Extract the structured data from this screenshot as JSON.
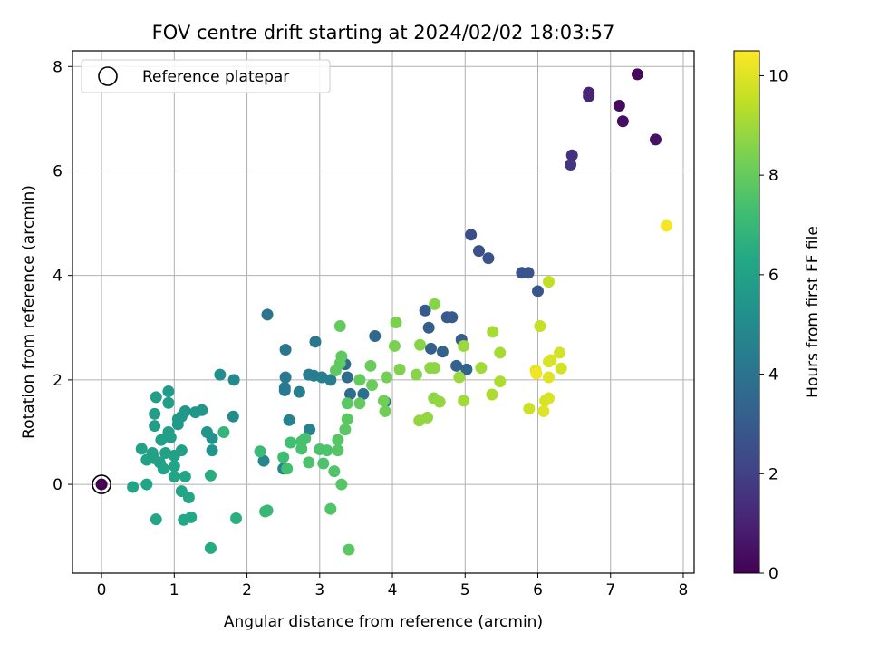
{
  "chart_data": {
    "type": "scatter",
    "title": "FOV centre drift starting at 2024/02/02 18:03:57",
    "xlabel": "Angular distance from reference (arcmin)",
    "ylabel": "Rotation from reference (arcmin)",
    "xlim": [
      -0.4,
      8.15
    ],
    "ylim": [
      -1.7,
      8.3
    ],
    "xticks": [
      0,
      1,
      2,
      3,
      4,
      5,
      6,
      7,
      8
    ],
    "yticks": [
      0,
      2,
      4,
      6,
      8
    ],
    "grid": true,
    "legend": {
      "position": "top-left",
      "entries": [
        "Reference platepar"
      ]
    },
    "reference_point": {
      "x": 0,
      "y": 0
    },
    "colorbar": {
      "label": "Hours from first FF file",
      "colormap": "viridis",
      "range": [
        0,
        10.5
      ],
      "ticks": [
        0,
        2,
        4,
        6,
        8,
        10
      ]
    },
    "points": [
      {
        "x": 0.0,
        "y": 0.0,
        "h": 0.0
      },
      {
        "x": 7.37,
        "y": 7.85,
        "h": 0.2
      },
      {
        "x": 7.12,
        "y": 7.25,
        "h": 0.3
      },
      {
        "x": 7.17,
        "y": 6.95,
        "h": 0.4
      },
      {
        "x": 7.62,
        "y": 6.6,
        "h": 0.5
      },
      {
        "x": 6.7,
        "y": 7.5,
        "h": 1.0
      },
      {
        "x": 6.7,
        "y": 7.43,
        "h": 1.1
      },
      {
        "x": 6.47,
        "y": 6.3,
        "h": 1.5
      },
      {
        "x": 6.45,
        "y": 6.12,
        "h": 1.6
      },
      {
        "x": 5.08,
        "y": 4.78,
        "h": 2.5
      },
      {
        "x": 5.19,
        "y": 4.47,
        "h": 2.6
      },
      {
        "x": 5.32,
        "y": 4.33,
        "h": 2.6
      },
      {
        "x": 5.78,
        "y": 4.05,
        "h": 2.7
      },
      {
        "x": 5.87,
        "y": 4.05,
        "h": 2.7
      },
      {
        "x": 6.0,
        "y": 3.7,
        "h": 2.8
      },
      {
        "x": 4.45,
        "y": 3.33,
        "h": 2.9
      },
      {
        "x": 4.75,
        "y": 3.2,
        "h": 3.0
      },
      {
        "x": 4.82,
        "y": 3.2,
        "h": 3.0
      },
      {
        "x": 4.5,
        "y": 3.0,
        "h": 3.1
      },
      {
        "x": 4.95,
        "y": 2.77,
        "h": 3.1
      },
      {
        "x": 4.53,
        "y": 2.6,
        "h": 3.2
      },
      {
        "x": 4.69,
        "y": 2.54,
        "h": 3.3
      },
      {
        "x": 4.88,
        "y": 2.27,
        "h": 3.3
      },
      {
        "x": 5.02,
        "y": 2.2,
        "h": 3.4
      },
      {
        "x": 3.76,
        "y": 2.84,
        "h": 3.5
      },
      {
        "x": 3.35,
        "y": 2.3,
        "h": 3.6
      },
      {
        "x": 3.38,
        "y": 2.05,
        "h": 3.7
      },
      {
        "x": 3.42,
        "y": 1.73,
        "h": 3.7
      },
      {
        "x": 3.6,
        "y": 1.73,
        "h": 3.8
      },
      {
        "x": 3.9,
        "y": 1.58,
        "h": 3.9
      },
      {
        "x": 2.28,
        "y": 3.25,
        "h": 4.0
      },
      {
        "x": 2.53,
        "y": 2.58,
        "h": 4.1
      },
      {
        "x": 2.94,
        "y": 2.73,
        "h": 4.2
      },
      {
        "x": 2.53,
        "y": 2.05,
        "h": 4.3
      },
      {
        "x": 2.52,
        "y": 1.85,
        "h": 4.3
      },
      {
        "x": 2.52,
        "y": 1.8,
        "h": 4.3
      },
      {
        "x": 2.85,
        "y": 2.1,
        "h": 4.4
      },
      {
        "x": 2.92,
        "y": 2.08,
        "h": 4.4
      },
      {
        "x": 3.03,
        "y": 2.05,
        "h": 4.5
      },
      {
        "x": 3.15,
        "y": 2.0,
        "h": 4.5
      },
      {
        "x": 2.72,
        "y": 1.77,
        "h": 4.5
      },
      {
        "x": 2.58,
        "y": 1.23,
        "h": 4.6
      },
      {
        "x": 2.86,
        "y": 1.05,
        "h": 4.6
      },
      {
        "x": 2.5,
        "y": 0.3,
        "h": 4.7
      },
      {
        "x": 2.23,
        "y": 0.45,
        "h": 4.8
      },
      {
        "x": 1.82,
        "y": 2.0,
        "h": 4.9
      },
      {
        "x": 1.81,
        "y": 1.3,
        "h": 5.0
      },
      {
        "x": 1.63,
        "y": 2.1,
        "h": 5.2
      },
      {
        "x": 1.52,
        "y": 0.88,
        "h": 5.3
      },
      {
        "x": 1.52,
        "y": 0.65,
        "h": 5.4
      },
      {
        "x": 1.45,
        "y": 1.0,
        "h": 5.4
      },
      {
        "x": 1.38,
        "y": 1.42,
        "h": 5.5
      },
      {
        "x": 1.29,
        "y": 1.38,
        "h": 5.5
      },
      {
        "x": 1.15,
        "y": 1.4,
        "h": 5.5
      },
      {
        "x": 1.1,
        "y": 1.3,
        "h": 5.6
      },
      {
        "x": 1.05,
        "y": 1.25,
        "h": 5.6
      },
      {
        "x": 1.05,
        "y": 1.15,
        "h": 5.6
      },
      {
        "x": 0.92,
        "y": 1.78,
        "h": 5.7
      },
      {
        "x": 0.75,
        "y": 1.67,
        "h": 5.8
      },
      {
        "x": 0.92,
        "y": 1.56,
        "h": 5.8
      },
      {
        "x": 0.73,
        "y": 1.35,
        "h": 5.8
      },
      {
        "x": 0.73,
        "y": 1.12,
        "h": 5.8
      },
      {
        "x": 0.92,
        "y": 1.0,
        "h": 5.9
      },
      {
        "x": 0.95,
        "y": 0.9,
        "h": 5.9
      },
      {
        "x": 0.82,
        "y": 0.85,
        "h": 5.9
      },
      {
        "x": 1.1,
        "y": 0.65,
        "h": 5.9
      },
      {
        "x": 1.0,
        "y": 0.55,
        "h": 5.9
      },
      {
        "x": 0.88,
        "y": 0.6,
        "h": 6.0
      },
      {
        "x": 0.7,
        "y": 0.6,
        "h": 6.0
      },
      {
        "x": 0.55,
        "y": 0.68,
        "h": 6.0
      },
      {
        "x": 0.62,
        "y": 0.47,
        "h": 6.0
      },
      {
        "x": 0.72,
        "y": 0.5,
        "h": 6.0
      },
      {
        "x": 0.8,
        "y": 0.42,
        "h": 6.0
      },
      {
        "x": 0.85,
        "y": 0.3,
        "h": 6.1
      },
      {
        "x": 1.0,
        "y": 0.35,
        "h": 6.1
      },
      {
        "x": 1.0,
        "y": 0.15,
        "h": 6.1
      },
      {
        "x": 1.15,
        "y": 0.15,
        "h": 6.1
      },
      {
        "x": 0.62,
        "y": 0.0,
        "h": 6.1
      },
      {
        "x": 0.43,
        "y": -0.05,
        "h": 6.1
      },
      {
        "x": 1.1,
        "y": -0.13,
        "h": 6.1
      },
      {
        "x": 1.2,
        "y": -0.25,
        "h": 6.2
      },
      {
        "x": 0.75,
        "y": -0.67,
        "h": 6.2
      },
      {
        "x": 1.13,
        "y": -0.68,
        "h": 6.3
      },
      {
        "x": 1.23,
        "y": -0.63,
        "h": 6.3
      },
      {
        "x": 1.5,
        "y": -1.22,
        "h": 6.4
      },
      {
        "x": 1.5,
        "y": 0.17,
        "h": 6.5
      },
      {
        "x": 1.85,
        "y": -0.65,
        "h": 6.6
      },
      {
        "x": 1.68,
        "y": 1.0,
        "h": 6.9
      },
      {
        "x": 2.25,
        "y": -0.52,
        "h": 7.0
      },
      {
        "x": 2.28,
        "y": -0.5,
        "h": 7.0
      },
      {
        "x": 2.18,
        "y": 0.63,
        "h": 7.1
      },
      {
        "x": 2.5,
        "y": 0.52,
        "h": 7.2
      },
      {
        "x": 2.55,
        "y": 0.3,
        "h": 7.3
      },
      {
        "x": 2.6,
        "y": 0.8,
        "h": 7.3
      },
      {
        "x": 2.75,
        "y": 0.82,
        "h": 7.4
      },
      {
        "x": 2.8,
        "y": 0.88,
        "h": 7.4
      },
      {
        "x": 2.75,
        "y": 0.68,
        "h": 7.4
      },
      {
        "x": 2.85,
        "y": 0.42,
        "h": 7.5
      },
      {
        "x": 3.0,
        "y": 0.67,
        "h": 7.5
      },
      {
        "x": 3.05,
        "y": 0.4,
        "h": 7.5
      },
      {
        "x": 3.1,
        "y": 0.65,
        "h": 7.5
      },
      {
        "x": 3.2,
        "y": 0.25,
        "h": 7.6
      },
      {
        "x": 3.15,
        "y": -0.47,
        "h": 7.6
      },
      {
        "x": 3.3,
        "y": 0.0,
        "h": 7.7
      },
      {
        "x": 3.25,
        "y": 0.65,
        "h": 7.7
      },
      {
        "x": 3.25,
        "y": 0.85,
        "h": 7.7
      },
      {
        "x": 3.35,
        "y": 1.05,
        "h": 7.8
      },
      {
        "x": 3.38,
        "y": 1.25,
        "h": 7.8
      },
      {
        "x": 3.38,
        "y": 1.55,
        "h": 7.8
      },
      {
        "x": 3.4,
        "y": -1.25,
        "h": 7.8
      },
      {
        "x": 3.22,
        "y": 2.18,
        "h": 7.9
      },
      {
        "x": 3.28,
        "y": 2.32,
        "h": 7.9
      },
      {
        "x": 3.3,
        "y": 2.45,
        "h": 7.9
      },
      {
        "x": 3.28,
        "y": 3.03,
        "h": 8.0
      },
      {
        "x": 3.55,
        "y": 2.0,
        "h": 8.0
      },
      {
        "x": 3.55,
        "y": 1.55,
        "h": 8.0
      },
      {
        "x": 3.72,
        "y": 1.9,
        "h": 8.1
      },
      {
        "x": 3.7,
        "y": 2.27,
        "h": 8.1
      },
      {
        "x": 3.88,
        "y": 1.6,
        "h": 8.2
      },
      {
        "x": 3.9,
        "y": 1.4,
        "h": 8.2
      },
      {
        "x": 3.92,
        "y": 2.05,
        "h": 8.3
      },
      {
        "x": 4.05,
        "y": 3.1,
        "h": 8.4
      },
      {
        "x": 4.03,
        "y": 2.65,
        "h": 8.4
      },
      {
        "x": 4.1,
        "y": 2.2,
        "h": 8.5
      },
      {
        "x": 4.33,
        "y": 2.1,
        "h": 8.6
      },
      {
        "x": 4.38,
        "y": 2.67,
        "h": 8.6
      },
      {
        "x": 4.58,
        "y": 3.45,
        "h": 8.6
      },
      {
        "x": 4.52,
        "y": 2.23,
        "h": 8.7
      },
      {
        "x": 4.58,
        "y": 2.23,
        "h": 8.7
      },
      {
        "x": 4.57,
        "y": 1.65,
        "h": 8.7
      },
      {
        "x": 4.65,
        "y": 1.58,
        "h": 8.8
      },
      {
        "x": 4.37,
        "y": 1.22,
        "h": 8.8
      },
      {
        "x": 4.48,
        "y": 1.28,
        "h": 8.8
      },
      {
        "x": 4.92,
        "y": 2.05,
        "h": 8.9
      },
      {
        "x": 4.98,
        "y": 2.65,
        "h": 8.9
      },
      {
        "x": 4.98,
        "y": 1.6,
        "h": 9.0
      },
      {
        "x": 5.22,
        "y": 2.23,
        "h": 9.0
      },
      {
        "x": 5.38,
        "y": 2.92,
        "h": 9.1
      },
      {
        "x": 5.48,
        "y": 2.52,
        "h": 9.1
      },
      {
        "x": 5.48,
        "y": 1.97,
        "h": 9.2
      },
      {
        "x": 5.37,
        "y": 1.72,
        "h": 9.2
      },
      {
        "x": 6.15,
        "y": 3.88,
        "h": 9.5
      },
      {
        "x": 6.03,
        "y": 3.03,
        "h": 9.6
      },
      {
        "x": 5.88,
        "y": 1.45,
        "h": 9.7
      },
      {
        "x": 6.3,
        "y": 2.52,
        "h": 9.8
      },
      {
        "x": 6.32,
        "y": 2.22,
        "h": 9.8
      },
      {
        "x": 6.15,
        "y": 2.35,
        "h": 9.9
      },
      {
        "x": 6.18,
        "y": 2.38,
        "h": 9.9
      },
      {
        "x": 6.1,
        "y": 1.6,
        "h": 9.9
      },
      {
        "x": 6.15,
        "y": 1.65,
        "h": 9.9
      },
      {
        "x": 6.08,
        "y": 1.4,
        "h": 10.0
      },
      {
        "x": 6.15,
        "y": 2.05,
        "h": 10.0
      },
      {
        "x": 5.97,
        "y": 2.18,
        "h": 10.1
      },
      {
        "x": 5.98,
        "y": 2.12,
        "h": 10.3
      },
      {
        "x": 7.77,
        "y": 4.95,
        "h": 10.4
      }
    ]
  }
}
